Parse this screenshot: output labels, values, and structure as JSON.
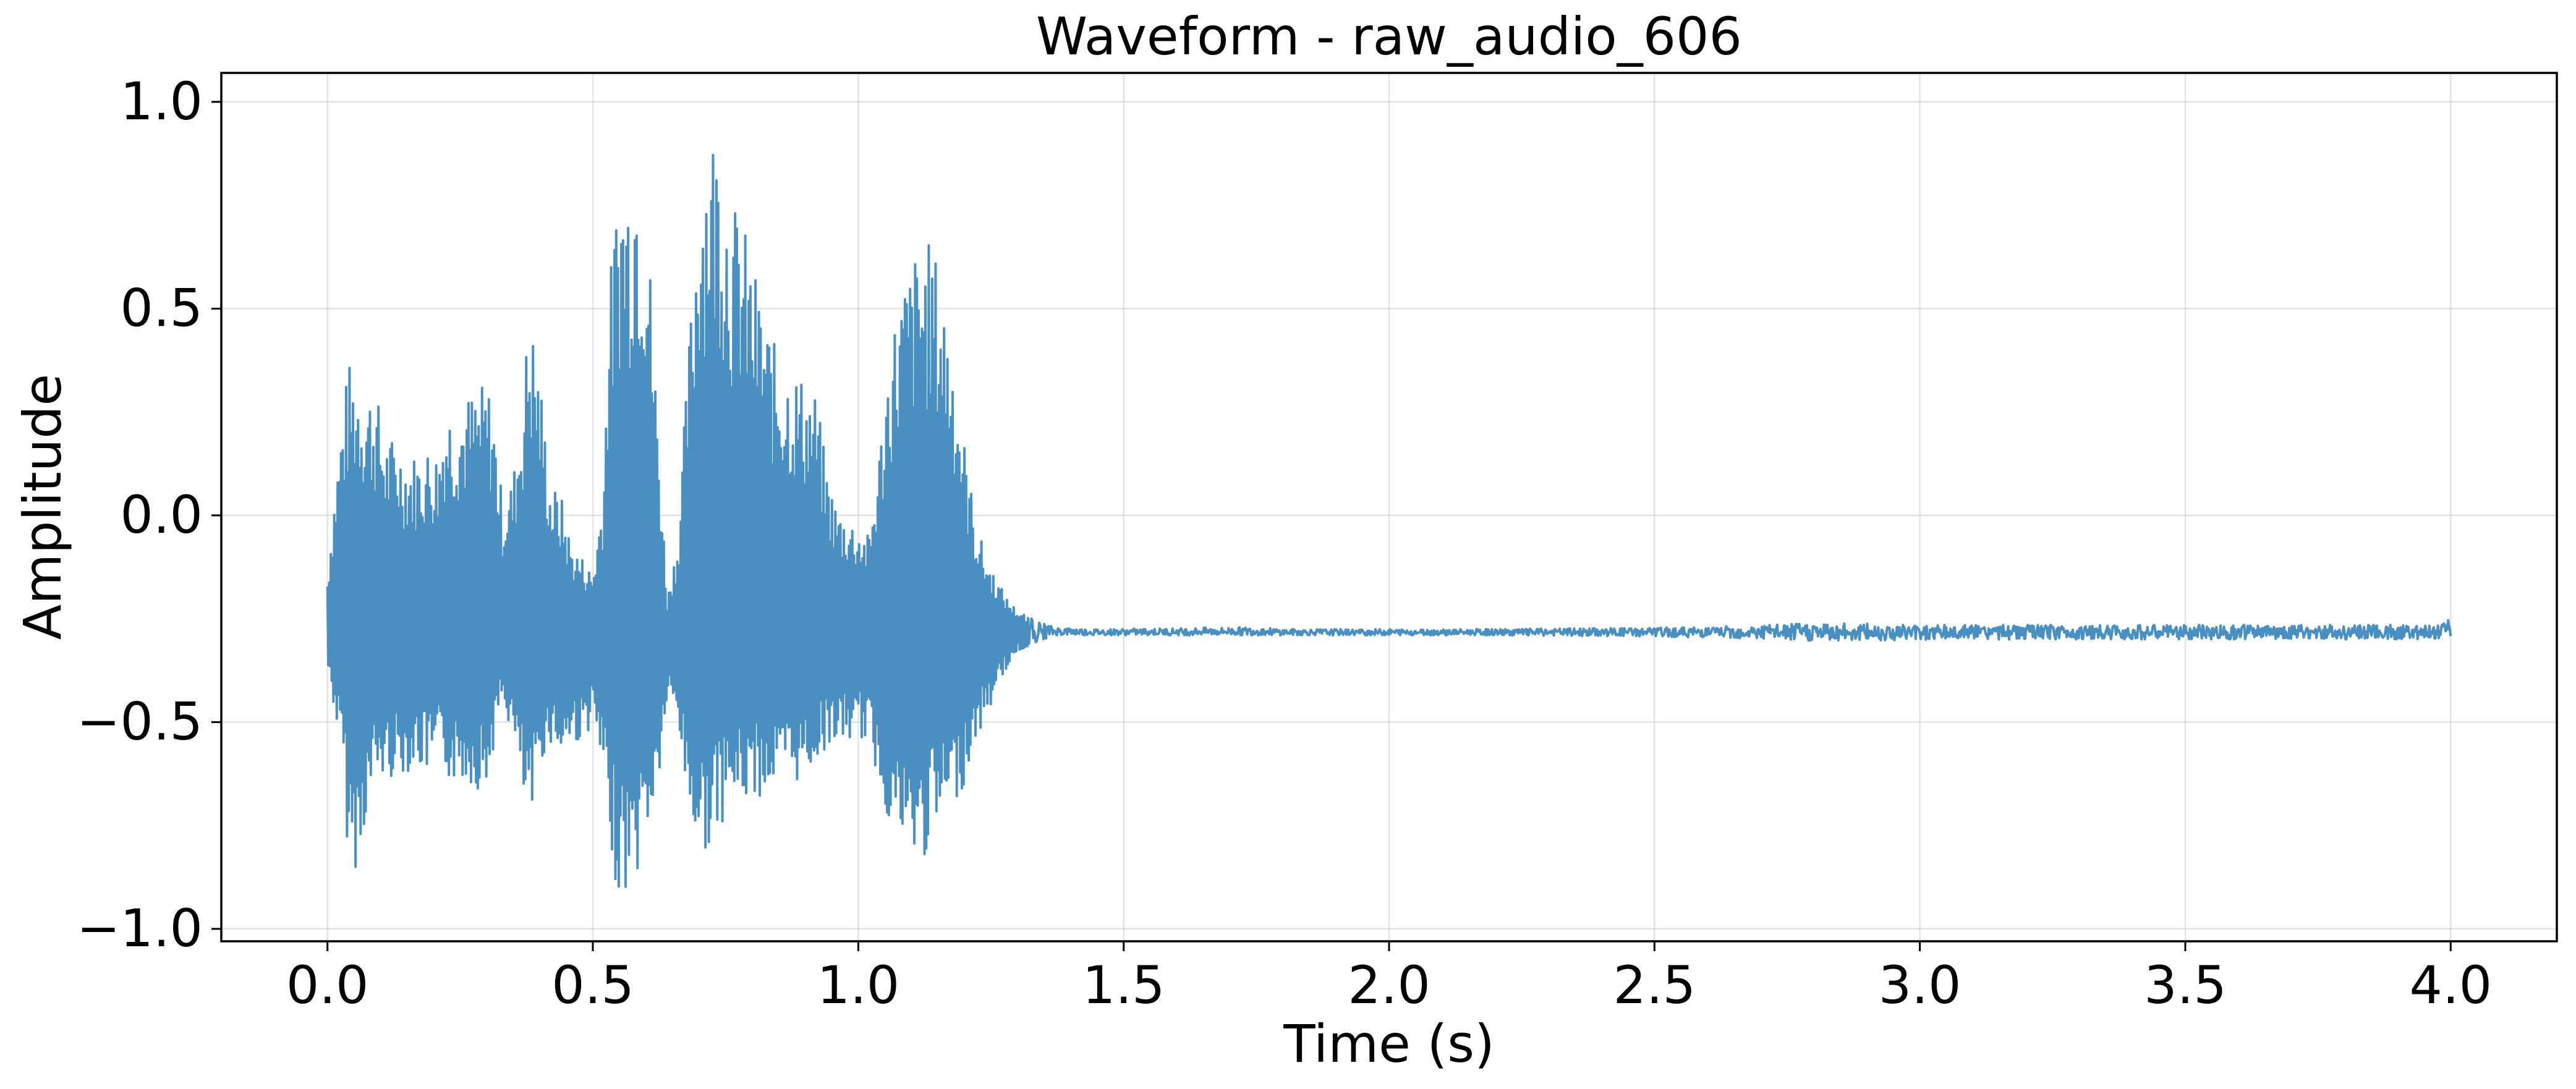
{
  "chart_data": {
    "type": "line",
    "title": "Waveform - raw_audio_606",
    "xlabel": "Time (s)",
    "ylabel": "Amplitude",
    "xlim": [
      -0.2,
      4.2
    ],
    "ylim": [
      -1.03,
      1.07
    ],
    "grid": true,
    "x_ticks": [
      0.0,
      0.5,
      1.0,
      1.5,
      2.0,
      2.5,
      3.0,
      3.5,
      4.0
    ],
    "x_tick_labels": [
      "0.0",
      "0.5",
      "1.0",
      "1.5",
      "2.0",
      "2.5",
      "3.0",
      "3.5",
      "4.0"
    ],
    "y_ticks": [
      1.0,
      0.5,
      0.0,
      -0.5,
      -1.0
    ],
    "y_tick_labels": [
      "1.0",
      "0.5",
      "0.0",
      "−0.5",
      "−1.0"
    ],
    "series": [
      {
        "color": "#4a8fc1",
        "baseline": -0.28,
        "duration": 4.0,
        "envelope": [
          {
            "t": 0.0,
            "max": -0.14,
            "min": -0.37
          },
          {
            "t": 0.01,
            "max": 0.03,
            "min": -0.45
          },
          {
            "t": 0.03,
            "max": 0.28,
            "min": -0.62
          },
          {
            "t": 0.04,
            "max": 0.37,
            "min": -0.86
          },
          {
            "t": 0.06,
            "max": 0.36,
            "min": -0.85
          },
          {
            "t": 0.07,
            "max": 0.32,
            "min": -0.75
          },
          {
            "t": 0.09,
            "max": 0.31,
            "min": -0.65
          },
          {
            "t": 0.11,
            "max": 0.19,
            "min": -0.64
          },
          {
            "t": 0.13,
            "max": 0.19,
            "min": -0.63
          },
          {
            "t": 0.15,
            "max": 0.15,
            "min": -0.62
          },
          {
            "t": 0.17,
            "max": 0.15,
            "min": -0.61
          },
          {
            "t": 0.19,
            "max": 0.17,
            "min": -0.63
          },
          {
            "t": 0.21,
            "max": 0.16,
            "min": -0.6
          },
          {
            "t": 0.22,
            "max": 0.28,
            "min": -0.63
          },
          {
            "t": 0.24,
            "max": 0.27,
            "min": -0.65
          },
          {
            "t": 0.26,
            "max": 0.29,
            "min": -0.64
          },
          {
            "t": 0.28,
            "max": 0.31,
            "min": -0.66
          },
          {
            "t": 0.3,
            "max": 0.32,
            "min": -0.67
          },
          {
            "t": 0.31,
            "max": 0.3,
            "min": -0.58
          },
          {
            "t": 0.33,
            "max": 0.03,
            "min": -0.45
          },
          {
            "t": 0.35,
            "max": 0.1,
            "min": -0.55
          },
          {
            "t": 0.37,
            "max": 0.33,
            "min": -0.7
          },
          {
            "t": 0.38,
            "max": 0.52,
            "min": -0.8
          },
          {
            "t": 0.4,
            "max": 0.35,
            "min": -0.6
          },
          {
            "t": 0.42,
            "max": 0.08,
            "min": -0.55
          },
          {
            "t": 0.44,
            "max": 0.05,
            "min": -0.59
          },
          {
            "t": 0.46,
            "max": -0.07,
            "min": -0.55
          },
          {
            "t": 0.48,
            "max": -0.1,
            "min": -0.55
          },
          {
            "t": 0.5,
            "max": -0.14,
            "min": -0.5
          },
          {
            "t": 0.52,
            "max": 0.09,
            "min": -0.65
          },
          {
            "t": 0.53,
            "max": 0.55,
            "min": -0.8
          },
          {
            "t": 0.55,
            "max": 0.85,
            "min": -0.93
          },
          {
            "t": 0.57,
            "max": 0.86,
            "min": -0.9
          },
          {
            "t": 0.58,
            "max": 0.95,
            "min": -0.89
          },
          {
            "t": 0.6,
            "max": 0.82,
            "min": -0.78
          },
          {
            "t": 0.62,
            "max": 0.3,
            "min": -0.7
          },
          {
            "t": 0.64,
            "max": -0.2,
            "min": -0.45
          },
          {
            "t": 0.66,
            "max": -0.05,
            "min": -0.5
          },
          {
            "t": 0.68,
            "max": 0.4,
            "min": -0.72
          },
          {
            "t": 0.7,
            "max": 0.86,
            "min": -0.82
          },
          {
            "t": 0.72,
            "max": 0.97,
            "min": -0.8
          },
          {
            "t": 0.74,
            "max": 0.94,
            "min": -0.75
          },
          {
            "t": 0.76,
            "max": 0.77,
            "min": -0.7
          },
          {
            "t": 0.78,
            "max": 0.73,
            "min": -0.7
          },
          {
            "t": 0.8,
            "max": 0.62,
            "min": -0.68
          },
          {
            "t": 0.82,
            "max": 0.52,
            "min": -0.68
          },
          {
            "t": 0.84,
            "max": 0.42,
            "min": -0.66
          },
          {
            "t": 0.86,
            "max": 0.38,
            "min": -0.65
          },
          {
            "t": 0.88,
            "max": 0.36,
            "min": -0.65
          },
          {
            "t": 0.9,
            "max": 0.33,
            "min": -0.63
          },
          {
            "t": 0.92,
            "max": 0.3,
            "min": -0.6
          },
          {
            "t": 0.94,
            "max": 0.12,
            "min": -0.56
          },
          {
            "t": 0.96,
            "max": 0.02,
            "min": -0.55
          },
          {
            "t": 0.98,
            "max": 0.0,
            "min": -0.55
          },
          {
            "t": 1.0,
            "max": -0.02,
            "min": -0.54
          },
          {
            "t": 1.02,
            "max": -0.05,
            "min": -0.55
          },
          {
            "t": 1.04,
            "max": 0.17,
            "min": -0.66
          },
          {
            "t": 1.06,
            "max": 0.43,
            "min": -0.75
          },
          {
            "t": 1.08,
            "max": 0.55,
            "min": -0.8
          },
          {
            "t": 1.1,
            "max": 0.62,
            "min": -0.85
          },
          {
            "t": 1.12,
            "max": 0.67,
            "min": -0.85
          },
          {
            "t": 1.14,
            "max": 0.66,
            "min": -0.78
          },
          {
            "t": 1.16,
            "max": 0.55,
            "min": -0.75
          },
          {
            "t": 1.18,
            "max": 0.4,
            "min": -0.7
          },
          {
            "t": 1.2,
            "max": 0.18,
            "min": -0.65
          },
          {
            "t": 1.22,
            "max": 0.0,
            "min": -0.55
          },
          {
            "t": 1.24,
            "max": -0.1,
            "min": -0.5
          },
          {
            "t": 1.26,
            "max": -0.15,
            "min": -0.42
          },
          {
            "t": 1.28,
            "max": -0.2,
            "min": -0.37
          },
          {
            "t": 1.3,
            "max": -0.23,
            "min": -0.33
          },
          {
            "t": 1.33,
            "max": -0.25,
            "min": -0.31
          },
          {
            "t": 1.37,
            "max": -0.27,
            "min": -0.29
          },
          {
            "t": 1.45,
            "max": -0.275,
            "min": -0.29
          },
          {
            "t": 1.75,
            "max": -0.27,
            "min": -0.29
          },
          {
            "t": 1.8,
            "max": -0.275,
            "min": -0.29
          },
          {
            "t": 2.2,
            "max": -0.275,
            "min": -0.29
          },
          {
            "t": 2.6,
            "max": -0.27,
            "min": -0.295
          },
          {
            "t": 2.8,
            "max": -0.26,
            "min": -0.305
          },
          {
            "t": 3.1,
            "max": -0.265,
            "min": -0.3
          },
          {
            "t": 3.5,
            "max": -0.265,
            "min": -0.3
          },
          {
            "t": 3.9,
            "max": -0.265,
            "min": -0.3
          },
          {
            "t": 3.98,
            "max": -0.26,
            "min": -0.3
          },
          {
            "t": 4.0,
            "max": -0.24,
            "min": -0.31
          }
        ]
      }
    ]
  }
}
